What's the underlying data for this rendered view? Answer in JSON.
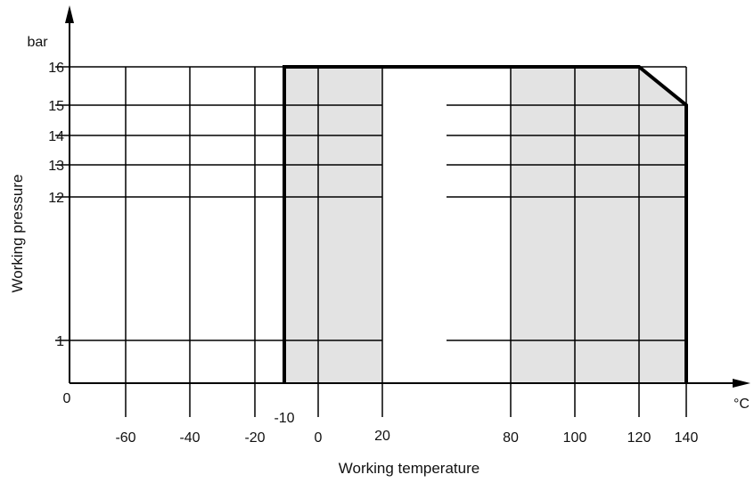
{
  "chart_data": {
    "type": "area",
    "title": "",
    "xlabel": "Working temperature",
    "ylabel": "Working pressure",
    "x_unit": "°C",
    "y_unit": "bar",
    "origin_label": "0",
    "x_tick_labels": [
      "-60",
      "-40",
      "-20",
      "-10",
      "0",
      "20",
      "80",
      "100",
      "120",
      "140"
    ],
    "y_tick_labels": [
      "16",
      "15",
      "14",
      "13",
      "12",
      "1"
    ],
    "x_axis_break": true,
    "y_axis_break": true,
    "grid": true,
    "operating_envelope": {
      "x": [
        -10,
        -10,
        120,
        140,
        140
      ],
      "y": [
        0,
        16,
        16,
        15,
        0
      ]
    },
    "shaded_ranges_x": [
      [
        -10,
        20
      ],
      [
        80,
        140
      ]
    ],
    "colors": {
      "shade": "#e3e3e3",
      "line": "#000000",
      "text": "#111111"
    }
  }
}
